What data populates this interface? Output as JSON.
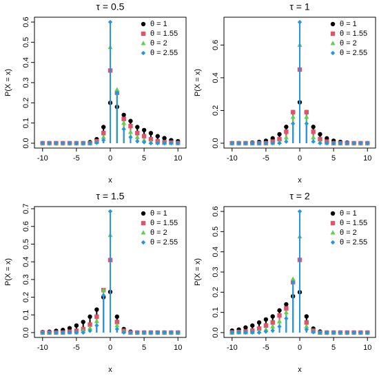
{
  "chart_data": [
    {
      "type": "stem",
      "title": "τ = 0.5",
      "xlabel": "x",
      "ylabel": "P(X = x)",
      "x": [
        -10,
        -9,
        -8,
        -7,
        -6,
        -5,
        -4,
        -3,
        -2,
        -1,
        0,
        1,
        2,
        3,
        4,
        5,
        6,
        7,
        8,
        9,
        10
      ],
      "xlim": [
        -11.2,
        11.2
      ],
      "xticks": [
        -10,
        -5,
        0,
        5,
        10
      ],
      "ylim": [
        -0.024,
        0.624
      ],
      "yticks": [
        {
          "value": 0,
          "label": "0.0"
        },
        0.1,
        0.2,
        0.3,
        0.4,
        0.5,
        0.6
      ],
      "legend": "top-right",
      "series": [
        {
          "name": "θ = 1",
          "color": "#000000",
          "marker": "circle",
          "values": [
            0,
            0,
            0,
            0,
            0,
            0,
            0,
            0.005,
            0.02,
            0.08,
            0.2,
            0.18,
            0.14,
            0.11,
            0.08,
            0.065,
            0.05,
            0.035,
            0.025,
            0.015,
            0.01
          ]
        },
        {
          "name": "θ = 1.55",
          "color": "#df536b",
          "marker": "square",
          "values": [
            0,
            0,
            0,
            0,
            0,
            0,
            0,
            0,
            0.01,
            0.05,
            0.36,
            0.25,
            0.12,
            0.085,
            0.05,
            0.035,
            0.02,
            0.01,
            0.005,
            0.003,
            0.001
          ]
        },
        {
          "name": "θ = 2",
          "color": "#61d04f",
          "marker": "triangle",
          "values": [
            0,
            0,
            0,
            0,
            0,
            0,
            0,
            0,
            0.005,
            0.03,
            0.475,
            0.265,
            0.1,
            0.055,
            0.03,
            0.015,
            0.005,
            0.002,
            0,
            0,
            0
          ]
        },
        {
          "name": "θ = 2.55",
          "color": "#2297e6",
          "marker": "diamond",
          "values": [
            0,
            0,
            0,
            0,
            0,
            0,
            0,
            0,
            0.002,
            0.015,
            0.6,
            0.25,
            0.07,
            0.03,
            0.01,
            0.005,
            0,
            0,
            0,
            0,
            0
          ]
        }
      ]
    },
    {
      "type": "stem",
      "title": "τ = 1",
      "xlabel": "x",
      "ylabel": "P(X = x)",
      "x": [
        -10,
        -9,
        -8,
        -7,
        -6,
        -5,
        -4,
        -3,
        -2,
        -1,
        0,
        1,
        2,
        3,
        4,
        5,
        6,
        7,
        8,
        9,
        10
      ],
      "xlim": [
        -11.2,
        11.2
      ],
      "xticks": [
        -10,
        -5,
        0,
        5,
        10
      ],
      "ylim": [
        -0.0296,
        0.77
      ],
      "yticks": [
        {
          "value": 0,
          "label": "0.0"
        },
        0.2,
        0.4,
        0.6
      ],
      "legend": "top-right",
      "series": [
        {
          "name": "θ = 1",
          "color": "#000000",
          "marker": "circle",
          "values": [
            0,
            0,
            0,
            0.004,
            0.008,
            0.015,
            0.03,
            0.055,
            0.1,
            0.19,
            0.25,
            0.19,
            0.1,
            0.055,
            0.03,
            0.015,
            0.008,
            0.004,
            0,
            0,
            0
          ]
        },
        {
          "name": "θ = 1.55",
          "color": "#df536b",
          "marker": "square",
          "values": [
            0,
            0,
            0,
            0,
            0,
            0,
            0.01,
            0.025,
            0.07,
            0.19,
            0.45,
            0.19,
            0.07,
            0.025,
            0.01,
            0,
            0,
            0,
            0,
            0,
            0
          ]
        },
        {
          "name": "θ = 2",
          "color": "#61d04f",
          "marker": "triangle",
          "values": [
            0,
            0,
            0,
            0,
            0,
            0,
            0,
            0.007,
            0.035,
            0.16,
            0.6,
            0.16,
            0.035,
            0.007,
            0,
            0,
            0,
            0,
            0,
            0,
            0
          ]
        },
        {
          "name": "θ = 2.55",
          "color": "#2297e6",
          "marker": "diamond",
          "values": [
            0,
            0,
            0,
            0,
            0,
            0,
            0,
            0,
            0.01,
            0.12,
            0.74,
            0.12,
            0.01,
            0,
            0,
            0,
            0,
            0,
            0,
            0,
            0
          ]
        }
      ]
    },
    {
      "type": "stem",
      "title": "τ = 1.5",
      "xlabel": "x",
      "ylabel": "P(X = x)",
      "x": [
        -10,
        -9,
        -8,
        -7,
        -6,
        -5,
        -4,
        -3,
        -2,
        -1,
        0,
        1,
        2,
        3,
        4,
        5,
        6,
        7,
        8,
        9,
        10
      ],
      "xlim": [
        -11.2,
        11.2
      ],
      "xticks": [
        -10,
        -5,
        0,
        5,
        10
      ],
      "ylim": [
        -0.0274,
        0.712
      ],
      "yticks": [
        {
          "value": 0,
          "label": "0.0"
        },
        0.1,
        0.2,
        0.3,
        0.4,
        0.5,
        0.6,
        0.7
      ],
      "legend": "top-right",
      "series": [
        {
          "name": "θ = 1",
          "color": "#000000",
          "marker": "circle",
          "values": [
            0.003,
            0.005,
            0.01,
            0.015,
            0.025,
            0.04,
            0.06,
            0.09,
            0.13,
            0.2,
            0.23,
            0.09,
            0.02,
            0.005,
            0,
            0,
            0,
            0,
            0,
            0,
            0
          ]
        },
        {
          "name": "θ = 1.55",
          "color": "#df536b",
          "marker": "square",
          "values": [
            0,
            0,
            0,
            0,
            0.005,
            0.01,
            0.02,
            0.045,
            0.09,
            0.24,
            0.41,
            0.06,
            0.01,
            0,
            0,
            0,
            0,
            0,
            0,
            0,
            0
          ]
        },
        {
          "name": "θ = 2",
          "color": "#61d04f",
          "marker": "triangle",
          "values": [
            0,
            0,
            0,
            0,
            0,
            0,
            0.01,
            0.025,
            0.065,
            0.24,
            0.55,
            0.04,
            0.005,
            0,
            0,
            0,
            0,
            0,
            0,
            0,
            0
          ]
        },
        {
          "name": "θ = 2.55",
          "color": "#2297e6",
          "marker": "diamond",
          "values": [
            0,
            0,
            0,
            0,
            0,
            0,
            0,
            0.01,
            0.04,
            0.21,
            0.685,
            0.02,
            0,
            0,
            0,
            0,
            0,
            0,
            0,
            0,
            0
          ]
        }
      ]
    },
    {
      "type": "stem",
      "title": "τ = 2",
      "xlabel": "x",
      "ylabel": "P(X = x)",
      "x": [
        -10,
        -9,
        -8,
        -7,
        -6,
        -5,
        -4,
        -3,
        -2,
        -1,
        0,
        1,
        2,
        3,
        4,
        5,
        6,
        7,
        8,
        9,
        10
      ],
      "xlim": [
        -11.2,
        11.2
      ],
      "xticks": [
        -10,
        -5,
        0,
        5,
        10
      ],
      "ylim": [
        -0.024,
        0.624
      ],
      "yticks": [
        {
          "value": 0,
          "label": "0.0"
        },
        0.1,
        0.2,
        0.3,
        0.4,
        0.5,
        0.6
      ],
      "legend": "top-right",
      "series": [
        {
          "name": "θ = 1",
          "color": "#000000",
          "marker": "circle",
          "values": [
            0.01,
            0.015,
            0.025,
            0.035,
            0.05,
            0.065,
            0.08,
            0.11,
            0.14,
            0.18,
            0.2,
            0.08,
            0.02,
            0.005,
            0,
            0,
            0,
            0,
            0,
            0,
            0
          ]
        },
        {
          "name": "θ = 1.55",
          "color": "#df536b",
          "marker": "square",
          "values": [
            0.001,
            0.003,
            0.005,
            0.01,
            0.02,
            0.035,
            0.05,
            0.085,
            0.12,
            0.25,
            0.36,
            0.05,
            0.01,
            0,
            0,
            0,
            0,
            0,
            0,
            0,
            0
          ]
        },
        {
          "name": "θ = 2",
          "color": "#61d04f",
          "marker": "triangle",
          "values": [
            0,
            0,
            0,
            0.002,
            0.005,
            0.015,
            0.03,
            0.055,
            0.1,
            0.265,
            0.475,
            0.03,
            0.005,
            0,
            0,
            0,
            0,
            0,
            0,
            0,
            0
          ]
        },
        {
          "name": "θ = 2.55",
          "color": "#2297e6",
          "marker": "diamond",
          "values": [
            0,
            0,
            0,
            0,
            0,
            0.005,
            0.01,
            0.03,
            0.07,
            0.25,
            0.6,
            0.015,
            0.002,
            0,
            0,
            0,
            0,
            0,
            0,
            0,
            0
          ]
        }
      ]
    }
  ]
}
